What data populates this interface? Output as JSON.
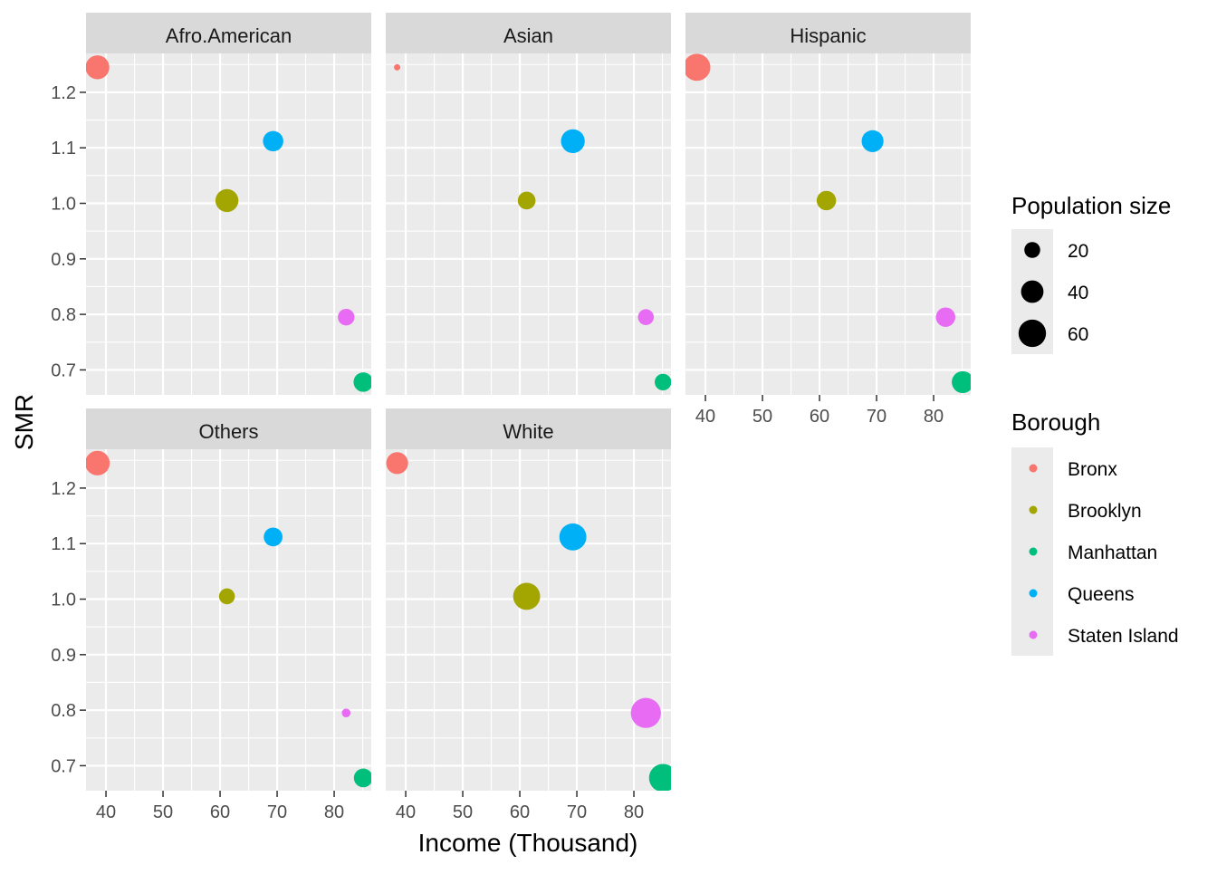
{
  "chart_data": {
    "type": "scatter",
    "xlabel": "Income (Thousand)",
    "ylabel": "SMR",
    "x_ticks": [
      40,
      50,
      60,
      70,
      80
    ],
    "y_ticks": [
      0.7,
      0.8,
      0.9,
      1.0,
      1.1,
      1.2
    ],
    "y_tick_labels": [
      "0.7",
      "0.8",
      "0.9",
      "1.0",
      "1.1",
      "1.2"
    ],
    "xlim": [
      36.5,
      86.5
    ],
    "ylim": [
      0.655,
      1.27
    ],
    "grid": true,
    "boroughs": [
      {
        "name": "Bronx",
        "color": "#F8766D",
        "income": 38.5,
        "smr": 1.245
      },
      {
        "name": "Brooklyn",
        "color": "#A3A500",
        "income": 61.2,
        "smr": 1.005
      },
      {
        "name": "Manhattan",
        "color": "#00BF7D",
        "income": 85.1,
        "smr": 0.678
      },
      {
        "name": "Queens",
        "color": "#00B0F6",
        "income": 69.3,
        "smr": 1.112
      },
      {
        "name": "Staten Island",
        "color": "#E76BF3",
        "income": 82.1,
        "smr": 0.795
      }
    ],
    "panels": [
      {
        "title": "Afro.American",
        "sizes": [
          45,
          42,
          30,
          33,
          22
        ]
      },
      {
        "title": "Asian",
        "sizes": [
          2,
          25,
          22,
          45,
          20
        ]
      },
      {
        "title": "Hispanic",
        "sizes": [
          58,
          30,
          38,
          38,
          30
        ]
      },
      {
        "title": "Others",
        "sizes": [
          48,
          20,
          28,
          28,
          6
        ]
      },
      {
        "title": "White",
        "sizes": [
          38,
          58,
          62,
          58,
          72
        ]
      }
    ],
    "size_legend": {
      "title": "Population size",
      "entries": [
        {
          "label": "20",
          "value": 20
        },
        {
          "label": "40",
          "value": 40
        },
        {
          "label": "60",
          "value": 60
        }
      ]
    },
    "color_legend": {
      "title": "Borough"
    }
  }
}
